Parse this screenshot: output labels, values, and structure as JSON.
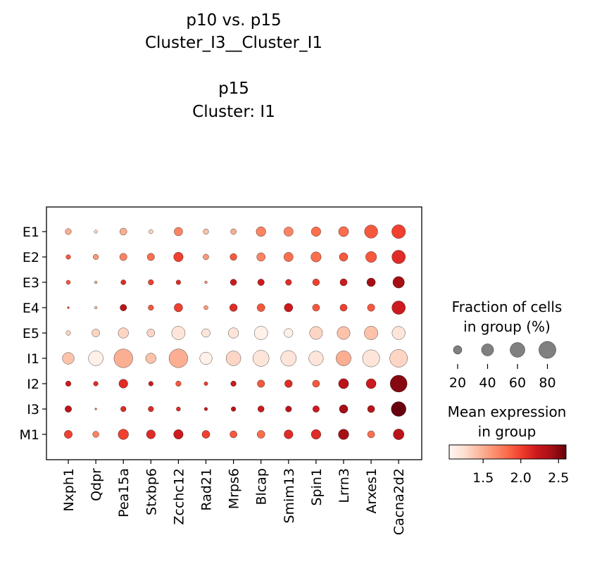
{
  "chart_data": {
    "type": "dotplot",
    "title_lines": [
      "p10 vs. p15",
      "Cluster_I3__Cluster_I1",
      "",
      "p15",
      "Cluster: I1"
    ],
    "genes": [
      "Nxph1",
      "Qdpr",
      "Pea15a",
      "Stxbp6",
      "Zcchc12",
      "Rad21",
      "Mrps6",
      "Blcap",
      "Smim13",
      "Spin1",
      "Lrrn3",
      "Arxes1",
      "Cacna2d2"
    ],
    "groups": [
      "E1",
      "E2",
      "E3",
      "E4",
      "E5",
      "I1",
      "I2",
      "I3",
      "M1"
    ],
    "fraction_pct": [
      [
        10,
        3,
        14,
        5,
        20,
        8,
        9,
        26,
        24,
        25,
        28,
        48,
        52
      ],
      [
        6,
        8,
        15,
        15,
        25,
        9,
        13,
        20,
        24,
        29,
        20,
        33,
        50
      ],
      [
        5,
        2,
        7,
        8,
        6,
        2,
        11,
        12,
        10,
        13,
        14,
        20,
        37
      ],
      [
        1,
        2,
        12,
        8,
        20,
        5,
        16,
        17,
        20,
        14,
        14,
        15,
        50
      ],
      [
        6,
        17,
        30,
        17,
        50,
        20,
        30,
        50,
        22,
        46,
        46,
        51,
        48
      ],
      [
        38,
        60,
        97,
        30,
        97,
        42,
        60,
        72,
        67,
        58,
        62,
        81,
        87
      ],
      [
        8,
        6,
        22,
        6,
        8,
        4,
        8,
        15,
        16,
        14,
        28,
        27,
        79
      ],
      [
        12,
        1,
        8,
        8,
        5,
        3,
        6,
        11,
        10,
        12,
        20,
        14,
        60
      ],
      [
        18,
        11,
        30,
        22,
        25,
        17,
        14,
        17,
        22,
        26,
        30,
        14,
        32
      ]
    ],
    "mean_expression": [
      [
        1.5,
        1.3,
        1.5,
        1.3,
        1.7,
        1.4,
        1.5,
        1.7,
        1.7,
        1.8,
        1.8,
        1.9,
        2.0
      ],
      [
        1.9,
        1.6,
        1.7,
        1.8,
        2.0,
        1.6,
        1.9,
        1.7,
        1.8,
        1.8,
        1.9,
        1.9,
        2.1
      ],
      [
        1.9,
        1.5,
        2.1,
        2.0,
        2.1,
        1.6,
        2.2,
        2.2,
        2.1,
        2.0,
        2.2,
        2.4,
        2.4
      ],
      [
        2.0,
        1.4,
        2.3,
        1.9,
        2.0,
        1.6,
        2.1,
        1.9,
        2.2,
        1.9,
        2.0,
        1.9,
        2.2
      ],
      [
        1.3,
        1.3,
        1.3,
        1.3,
        1.2,
        1.2,
        1.2,
        1.1,
        1.1,
        1.3,
        1.4,
        1.4,
        1.2
      ],
      [
        1.4,
        1.1,
        1.5,
        1.4,
        1.5,
        1.1,
        1.3,
        1.2,
        1.2,
        1.2,
        1.5,
        1.2,
        1.3
      ],
      [
        2.2,
        2.1,
        2.1,
        2.2,
        1.9,
        2.0,
        2.2,
        1.9,
        2.1,
        1.9,
        2.3,
        2.2,
        2.5
      ],
      [
        2.3,
        1.8,
        2.1,
        2.1,
        2.1,
        2.2,
        2.3,
        2.2,
        2.3,
        2.2,
        2.4,
        2.3,
        2.6
      ],
      [
        2.0,
        1.7,
        2.0,
        2.1,
        2.2,
        2.0,
        1.9,
        1.8,
        2.1,
        2.1,
        2.4,
        1.8,
        2.3
      ]
    ],
    "size_legend": {
      "title_lines": [
        "Fraction of cells",
        "in group (%)"
      ],
      "values": [
        20,
        40,
        60,
        80
      ]
    },
    "color_legend": {
      "title_lines": [
        "Mean expression",
        "in group"
      ],
      "range": [
        1.05,
        2.6
      ],
      "ticks": [
        1.5,
        2.0,
        2.5
      ],
      "tick_labels": [
        "1.5",
        "2.0",
        "2.5"
      ],
      "colormap": "Reds",
      "color_stops": [
        "#fff5f0",
        "#fee0d2",
        "#fcbba1",
        "#fc9272",
        "#fb6a4a",
        "#ef3b2c",
        "#cb181d",
        "#a50f15",
        "#67000d"
      ]
    }
  }
}
